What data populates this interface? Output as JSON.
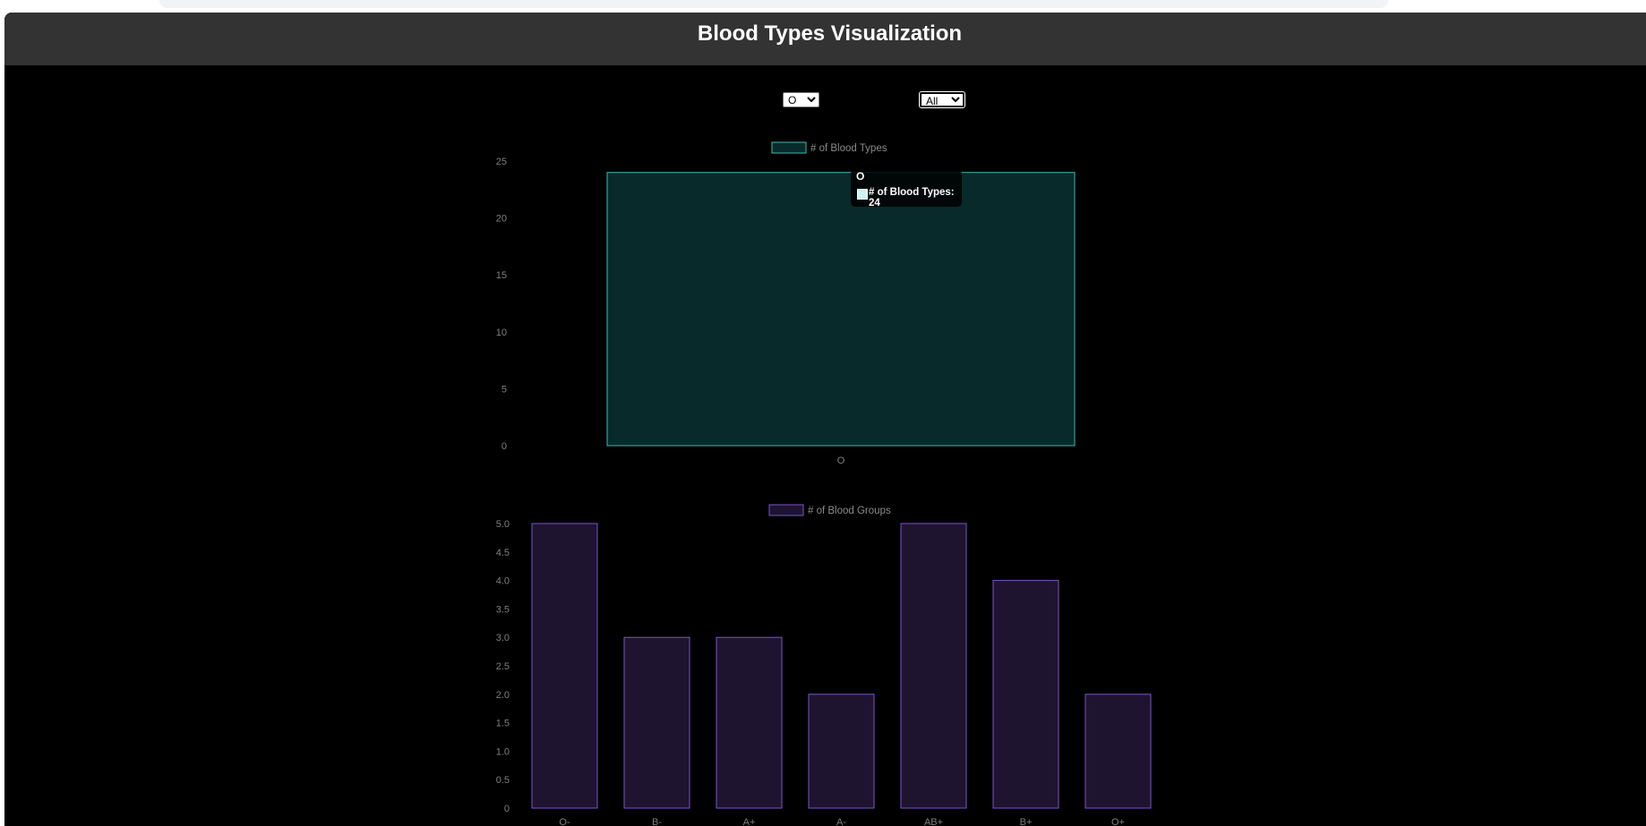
{
  "page": {
    "title": "Blood Types Visualization"
  },
  "filters": {
    "blood_type": {
      "selected": "O",
      "options": [
        "O"
      ]
    },
    "group": {
      "selected": "All",
      "options": [
        "All"
      ]
    }
  },
  "colors": {
    "teal_fill": "#082a2b",
    "teal_border": "#3fb8b0",
    "purple_fill": "#1e1430",
    "purple_border": "#7a55c8",
    "tick": "#7f7f7f",
    "header_bg": "#333333"
  },
  "tooltip": {
    "title": "O",
    "label": "# of Blood Types: 24"
  },
  "chart_data": [
    {
      "type": "bar",
      "categories": [
        "O"
      ],
      "series": [
        {
          "name": "# of Blood Types",
          "values": [
            24
          ]
        }
      ],
      "ylim": [
        0,
        25
      ],
      "yticks": [
        "0",
        "5",
        "10",
        "15",
        "20",
        "25"
      ],
      "legend": "top",
      "grid": false
    },
    {
      "type": "bar",
      "categories": [
        "O-",
        "B-",
        "A+",
        "A-",
        "AB+",
        "B+",
        "O+"
      ],
      "series": [
        {
          "name": "# of Blood Groups",
          "values": [
            5,
            3,
            3,
            2,
            5,
            4,
            2
          ]
        }
      ],
      "ylim": [
        0,
        5
      ],
      "yticks": [
        "0",
        "0.5",
        "1.0",
        "1.5",
        "2.0",
        "2.5",
        "3.0",
        "3.5",
        "4.0",
        "4.5",
        "5.0"
      ],
      "legend": "top",
      "grid": false
    }
  ]
}
